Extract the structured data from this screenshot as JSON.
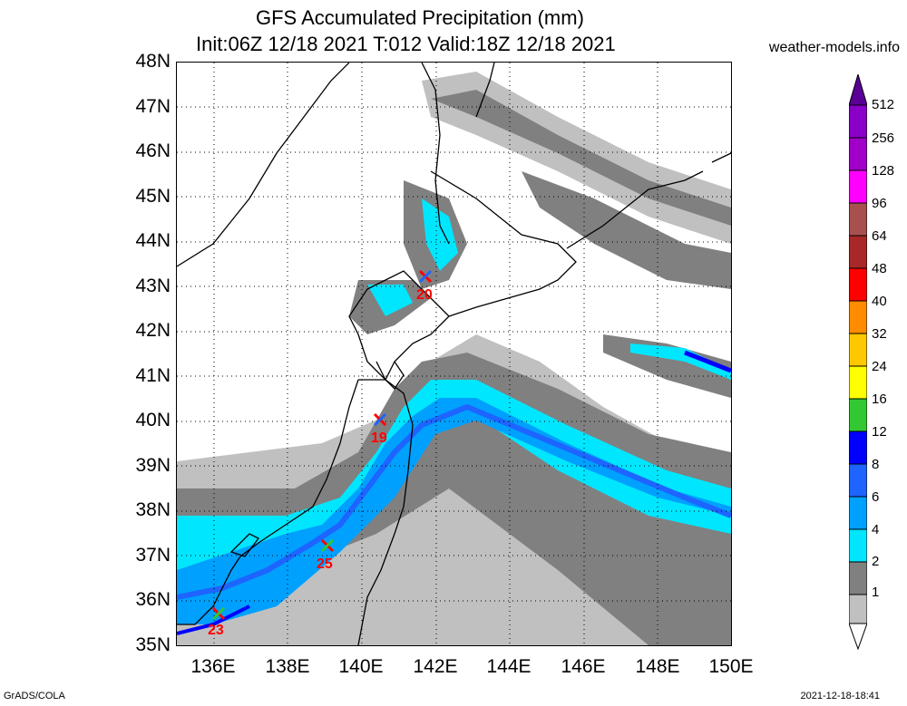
{
  "title_line1": "GFS Accumulated Precipitation (mm)",
  "title_line2": "Init:06Z 12/18 2021 T:012 Valid:18Z 12/18 2021",
  "site": "weather-models.info",
  "footer_left": "GrADS/COLA",
  "footer_right": "2021-12-18-18:41",
  "lat_labels": [
    "48N",
    "47N",
    "46N",
    "45N",
    "44N",
    "43N",
    "42N",
    "41N",
    "40N",
    "39N",
    "38N",
    "37N",
    "36N",
    "35N"
  ],
  "lon_labels": [
    "136E",
    "138E",
    "140E",
    "142E",
    "144E",
    "146E",
    "148E",
    "150E"
  ],
  "legend": {
    "levels": [
      "512",
      "256",
      "128",
      "96",
      "64",
      "48",
      "40",
      "32",
      "24",
      "16",
      "12",
      "8",
      "6",
      "4",
      "2",
      "1"
    ],
    "colors": [
      "#8a00c8",
      "#a000c8",
      "#ff00ff",
      "#a85050",
      "#a82828",
      "#ff0000",
      "#ff8c00",
      "#ffc800",
      "#ffff00",
      "#32c832",
      "#0000ff",
      "#1e64ff",
      "#00a0ff",
      "#00e6ff",
      "#808080",
      "#c0c0c0"
    ]
  },
  "markers": [
    {
      "label": "20",
      "lon": 141.8,
      "lat": 43.2
    },
    {
      "label": "19",
      "lon": 140.5,
      "lat": 40.0
    },
    {
      "label": "25",
      "lon": 139.2,
      "lat": 37.2
    },
    {
      "label": "23",
      "lon": 136.2,
      "lat": 35.6
    }
  ]
}
